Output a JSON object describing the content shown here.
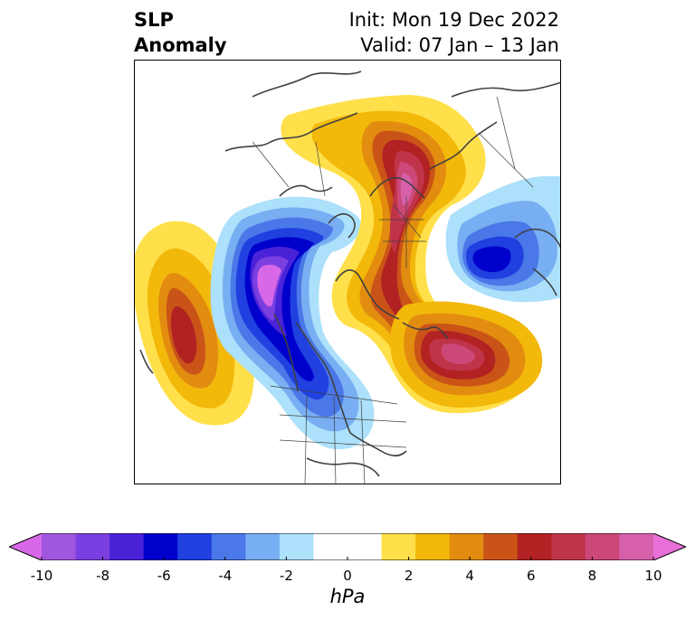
{
  "header": {
    "title_line1": "SLP",
    "title_line2": "Anomaly",
    "init_text": "Init: Mon 19 Dec 2022",
    "valid_text": "Valid: 07 Jan – 13 Jan"
  },
  "map": {
    "projection": "polar-stereographic",
    "region": "Northern Hemisphere (North America / Arctic / Europe)",
    "anomaly_centers": [
      {
        "id": "pacific-high",
        "sign": "positive",
        "peak_hPa": 7
      },
      {
        "id": "western-canada-low",
        "sign": "negative",
        "peak_hPa": -10
      },
      {
        "id": "arctic-high",
        "sign": "positive",
        "peak_hPa": 9
      },
      {
        "id": "north-atlantic-high",
        "sign": "positive",
        "peak_hPa": 8
      },
      {
        "id": "siberia-low",
        "sign": "negative",
        "peak_hPa": -6
      }
    ]
  },
  "colorbar": {
    "unit": "hPa",
    "min": -10,
    "max": 10,
    "extend": "both",
    "tick_labels": [
      "-10",
      "-8",
      "-6",
      "-4",
      "-2",
      "0",
      "2",
      "4",
      "6",
      "8",
      "10"
    ],
    "left_extend_color": "#d868e8",
    "right_extend_color": "#e870d8",
    "segment_colors": [
      "#a057e0",
      "#7a3fe0",
      "#4a22d8",
      "#0000cc",
      "#2040e0",
      "#4a78e8",
      "#78aef2",
      "#ace0fb",
      "#ffffff",
      "#ffffff",
      "#ffe04a",
      "#f2b80a",
      "#e28c10",
      "#ca5418",
      "#b22222",
      "#c0344a",
      "#cc4878",
      "#d660aa"
    ]
  }
}
